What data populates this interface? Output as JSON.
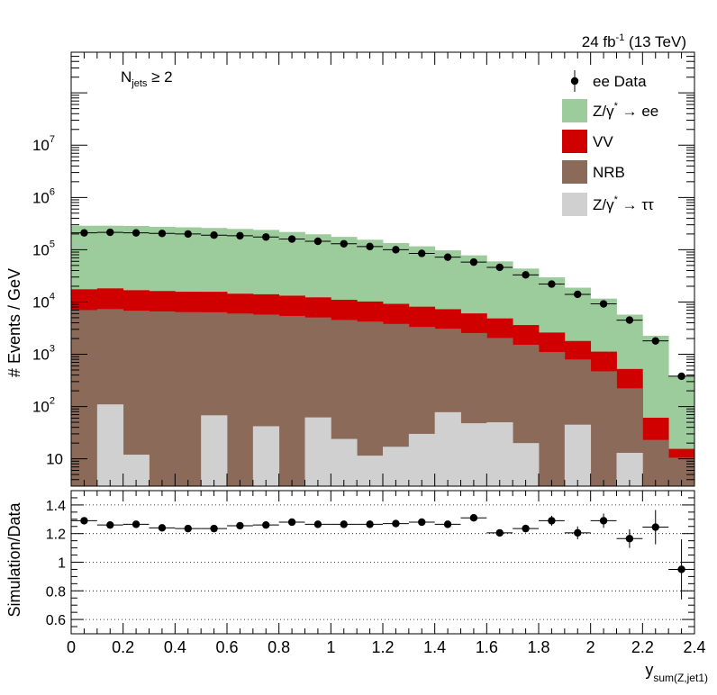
{
  "header": {
    "lumi": "24 fb",
    "lumi_sup": "-1",
    "energy": " (13 TeV)",
    "selection_main": "N",
    "selection_sub": "jets",
    "selection_rest": " ≥ 2"
  },
  "chart_data": [
    {
      "type": "bar",
      "stacked": true,
      "log_y": true,
      "ylabel": "# Events / GeV",
      "xlim": [
        0,
        2.4
      ],
      "ylim": [
        3,
        600000000
      ],
      "x_bin_edges": [
        0,
        0.1,
        0.2,
        0.3,
        0.4,
        0.5,
        0.6,
        0.7,
        0.8,
        0.9,
        1.0,
        1.1,
        1.2,
        1.3,
        1.4,
        1.5,
        1.6,
        1.7,
        1.8,
        1.9,
        2.0,
        2.1,
        2.2,
        2.3,
        2.4
      ],
      "y_ticks": [
        {
          "value": 10,
          "base": "10",
          "exp": ""
        },
        {
          "value": 100,
          "base": "10",
          "exp": "2"
        },
        {
          "value": 1000,
          "base": "10",
          "exp": "3"
        },
        {
          "value": 10000,
          "base": "10",
          "exp": "4"
        },
        {
          "value": 100000,
          "base": "10",
          "exp": "5"
        },
        {
          "value": 1000000,
          "base": "10",
          "exp": "6"
        },
        {
          "value": 10000000,
          "base": "10",
          "exp": "7"
        }
      ],
      "legend_position": "top-right",
      "series": [
        {
          "name": "Z/γ* → ττ",
          "legend_main": "Z/γ",
          "legend_sup": "*",
          "legend_rest": " → ττ",
          "color": "#d0d0d0",
          "values": [
            3,
            110,
            12,
            3,
            3,
            68,
            3,
            42,
            3,
            62,
            24,
            11.5,
            17,
            30,
            78,
            48,
            50,
            20,
            3,
            45,
            3,
            13,
            3,
            3
          ]
        },
        {
          "name": "NRB",
          "legend_main": "NRB",
          "legend_sup": "",
          "legend_rest": "",
          "color": "#8b6a5a",
          "values": [
            7000,
            7200,
            6800,
            6600,
            6400,
            6300,
            6000,
            5700,
            5400,
            5000,
            4500,
            4200,
            3800,
            3300,
            3000,
            2500,
            2000,
            1500,
            1100,
            750,
            470,
            210,
            20,
            7.5
          ]
        },
        {
          "name": "VV",
          "legend_main": "VV",
          "legend_sup": "",
          "legend_rest": "",
          "color": "#d10000",
          "values": [
            10500,
            10900,
            10000,
            9600,
            9300,
            9300,
            8400,
            8300,
            7800,
            7200,
            6500,
            6000,
            5400,
            4800,
            4200,
            3500,
            2800,
            2100,
            1500,
            1000,
            650,
            300,
            38,
            5
          ]
        },
        {
          "name": "Z/γ* → ee",
          "legend_main": "Z/γ",
          "legend_sup": "*",
          "legend_rest": " → ee",
          "color": "#9ccc9c",
          "values": [
            270000,
            270000,
            268000,
            258000,
            252000,
            245000,
            235000,
            225000,
            205000,
            185000,
            165000,
            145000,
            125000,
            108000,
            90000,
            72000,
            55000,
            40000,
            27000,
            17000,
            10500,
            5200,
            2200,
            360
          ]
        }
      ],
      "data_points": {
        "name": "ee Data",
        "legend_main": "ee Data",
        "x": [
          0.05,
          0.15,
          0.25,
          0.35,
          0.45,
          0.55,
          0.65,
          0.75,
          0.85,
          0.95,
          1.05,
          1.15,
          1.25,
          1.35,
          1.45,
          1.55,
          1.65,
          1.75,
          1.85,
          1.95,
          2.05,
          2.15,
          2.25,
          2.35
        ],
        "y": [
          210000,
          215000,
          210000,
          205000,
          200000,
          190000,
          185000,
          175000,
          160000,
          145000,
          130000,
          115000,
          100000,
          85000,
          72000,
          58000,
          46000,
          33000,
          22000,
          14000,
          9200,
          4500,
          1800,
          380
        ],
        "yerr": [
          2000,
          2000,
          2000,
          2000,
          2000,
          2000,
          2000,
          2000,
          2000,
          1800,
          1500,
          1300,
          1200,
          1000,
          900,
          800,
          700,
          500,
          400,
          300,
          250,
          150,
          80,
          40
        ]
      }
    },
    {
      "type": "scatter",
      "ylabel": "Simulation/Data",
      "xlabel_main": "y",
      "xlabel_sub": "sum(Z,jet1)",
      "xlim": [
        0,
        2.4
      ],
      "ylim": [
        0.5,
        1.5
      ],
      "x_ticks": [
        "0",
        "0.2",
        "0.4",
        "0.6",
        "0.8",
        "1",
        "1.2",
        "1.4",
        "1.6",
        "1.8",
        "2",
        "2.2",
        "2.4"
      ],
      "y_ticks": [
        "0.6",
        "0.8",
        "1",
        "1.2",
        "1.4"
      ],
      "grid": true,
      "points": {
        "x": [
          0.05,
          0.15,
          0.25,
          0.35,
          0.45,
          0.55,
          0.65,
          0.75,
          0.85,
          0.95,
          1.05,
          1.15,
          1.25,
          1.35,
          1.45,
          1.55,
          1.65,
          1.75,
          1.85,
          1.95,
          2.05,
          2.15,
          2.25,
          2.35
        ],
        "y": [
          1.29,
          1.26,
          1.265,
          1.24,
          1.235,
          1.235,
          1.255,
          1.26,
          1.28,
          1.265,
          1.265,
          1.265,
          1.27,
          1.28,
          1.265,
          1.31,
          1.205,
          1.235,
          1.29,
          1.205,
          1.29,
          1.165,
          1.245,
          0.95
        ],
        "yerr": [
          0.012,
          0.012,
          0.012,
          0.012,
          0.012,
          0.012,
          0.012,
          0.012,
          0.012,
          0.012,
          0.014,
          0.014,
          0.015,
          0.016,
          0.018,
          0.02,
          0.022,
          0.027,
          0.035,
          0.045,
          0.05,
          0.065,
          0.12,
          0.21
        ]
      }
    }
  ]
}
